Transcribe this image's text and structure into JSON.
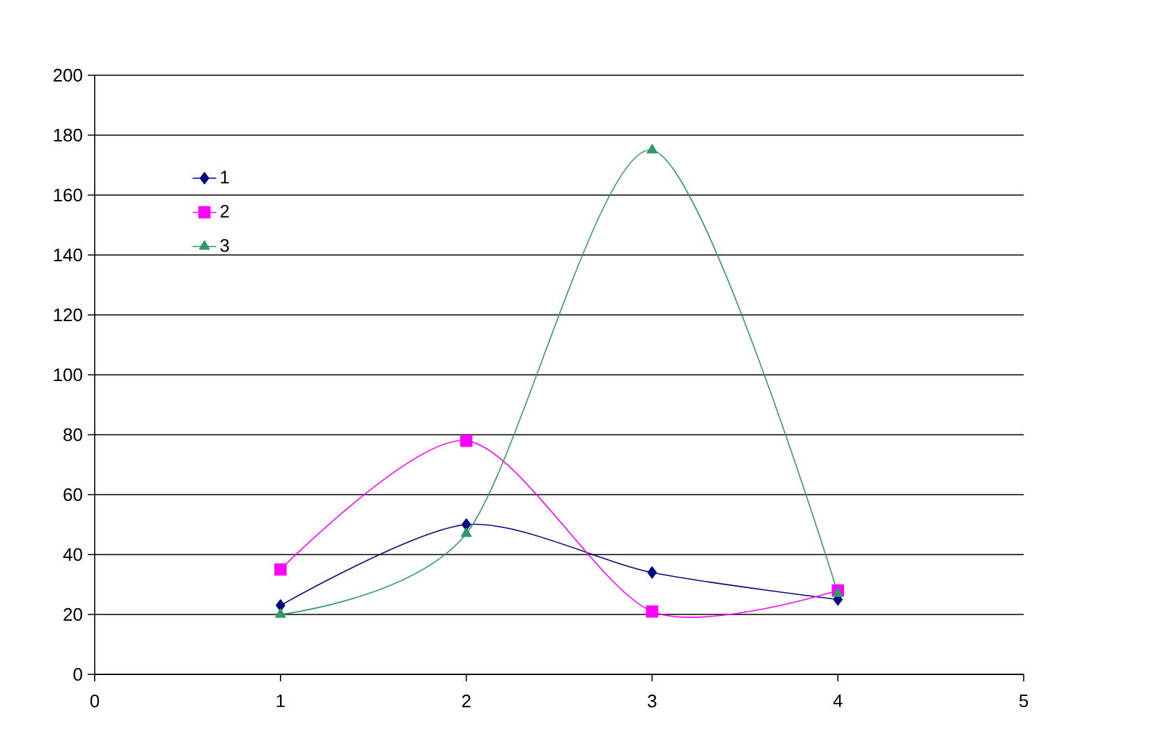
{
  "chart_data": {
    "type": "line",
    "x": [
      1,
      2,
      3,
      4
    ],
    "series": [
      {
        "name": "1",
        "color": "#000080",
        "marker": "diamond",
        "values": [
          23,
          50,
          34,
          25
        ]
      },
      {
        "name": "2",
        "color": "#ff00ff",
        "marker": "square",
        "values": [
          35,
          78,
          21,
          28
        ]
      },
      {
        "name": "3",
        "color": "#339966",
        "marker": "triangle",
        "values": [
          20,
          47,
          175,
          27
        ]
      }
    ],
    "xlim": [
      0,
      5
    ],
    "xticks": [
      0,
      1,
      2,
      3,
      4,
      5
    ],
    "ylim": [
      0,
      200
    ],
    "yticks": [
      0,
      20,
      40,
      60,
      80,
      100,
      120,
      140,
      160,
      180,
      200
    ],
    "grid": "y",
    "legend": "top left",
    "line_style": "solid"
  }
}
